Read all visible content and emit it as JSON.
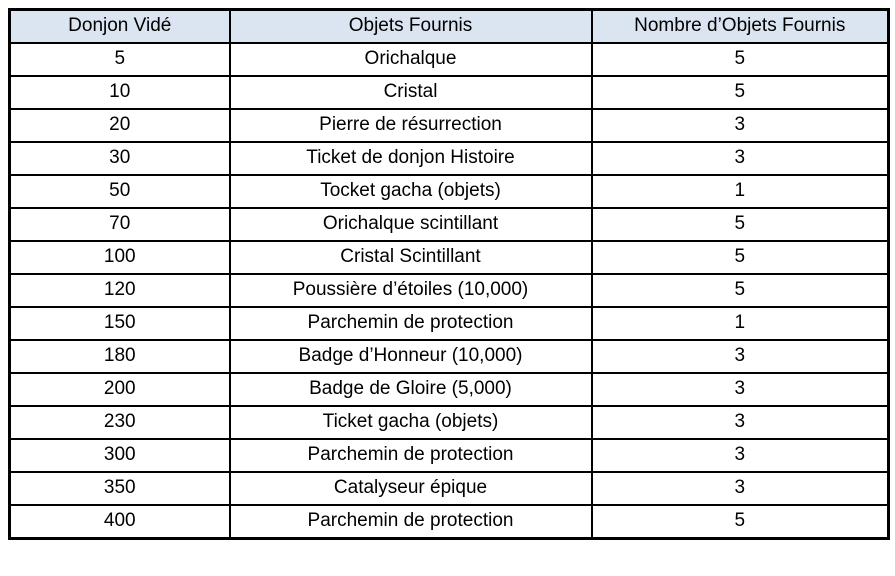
{
  "table": {
    "columns": [
      {
        "key": "donjon",
        "label": "Donjon Vidé"
      },
      {
        "key": "objet",
        "label": "Objets Fournis"
      },
      {
        "key": "nombre",
        "label": "Nombre d’Objets Fournis"
      }
    ],
    "rows": [
      [
        "5",
        "Orichalque",
        "5"
      ],
      [
        "10",
        "Cristal",
        "5"
      ],
      [
        "20",
        "Pierre de résurrection",
        "3"
      ],
      [
        "30",
        "Ticket de donjon Histoire",
        "3"
      ],
      [
        "50",
        "Tocket gacha (objets)",
        "1"
      ],
      [
        "70",
        "Orichalque scintillant",
        "5"
      ],
      [
        "100",
        "Cristal Scintillant",
        "5"
      ],
      [
        "120",
        "Poussière d’étoiles (10,000)",
        "5"
      ],
      [
        "150",
        "Parchemin de protection",
        "1"
      ],
      [
        "180",
        "Badge d’Honneur (10,000)",
        "3"
      ],
      [
        "200",
        "Badge de Gloire (5,000)",
        "3"
      ],
      [
        "230",
        "Ticket gacha (objets)",
        "3"
      ],
      [
        "300",
        "Parchemin de protection",
        "3"
      ],
      [
        "350",
        "Catalyseur épique",
        "3"
      ],
      [
        "400",
        "Parchemin de protection",
        "5"
      ]
    ],
    "colors": {
      "page_bg": "#ffffff",
      "header_bg": "#dbe5f1",
      "border": "#000000",
      "text": "#000000"
    }
  }
}
